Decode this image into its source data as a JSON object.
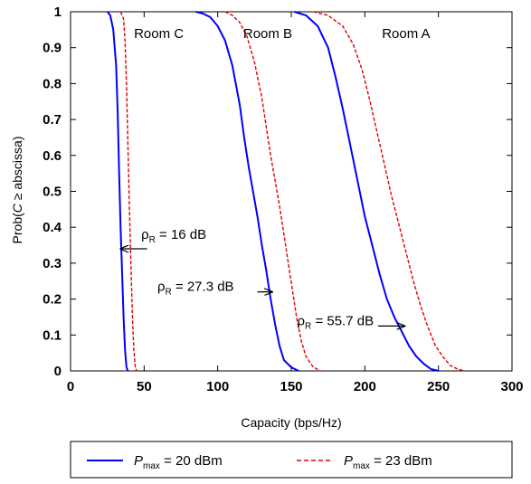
{
  "chart_data": {
    "type": "line",
    "xlabel": "Capacity (bps/Hz)",
    "ylabel_parts": {
      "prefix": "Prob(",
      "var": "C",
      "rest": " ≥ abscissa)"
    },
    "xlim": [
      0,
      300
    ],
    "ylim": [
      0,
      1
    ],
    "xticks": [
      0,
      50,
      100,
      150,
      200,
      250,
      300
    ],
    "yticks": [
      0,
      0.1,
      0.2,
      0.3,
      0.4,
      0.5,
      0.6,
      0.7,
      0.8,
      0.9,
      1
    ],
    "ytick_labels": [
      "0",
      "0.1",
      "0.2",
      "0.3",
      "0.4",
      "0.5",
      "0.6",
      "0.7",
      "0.8",
      "0.9",
      "1"
    ],
    "grid": false,
    "legend_position": "bottom",
    "series": [
      {
        "group": "Room C",
        "pmax": "20",
        "color": "#0000ff",
        "dash": "solid",
        "points": [
          [
            25,
            1
          ],
          [
            27,
            0.99
          ],
          [
            29,
            0.95
          ],
          [
            31,
            0.85
          ],
          [
            32,
            0.72
          ],
          [
            33,
            0.55
          ],
          [
            34,
            0.4
          ],
          [
            35,
            0.28
          ],
          [
            36,
            0.15
          ],
          [
            37,
            0.06
          ],
          [
            38,
            0.01
          ],
          [
            39,
            0
          ]
        ]
      },
      {
        "group": "Room C",
        "pmax": "23",
        "color": "#e00000",
        "dash": "dashed",
        "points": [
          [
            34,
            1
          ],
          [
            36,
            0.98
          ],
          [
            37,
            0.92
          ],
          [
            38,
            0.8
          ],
          [
            39,
            0.63
          ],
          [
            40,
            0.45
          ],
          [
            41,
            0.3
          ],
          [
            42,
            0.16
          ],
          [
            43,
            0.06
          ],
          [
            44,
            0.01
          ],
          [
            45,
            0
          ]
        ]
      },
      {
        "group": "Room B",
        "pmax": "20",
        "color": "#0000ff",
        "dash": "solid",
        "points": [
          [
            85,
            1
          ],
          [
            90,
            0.995
          ],
          [
            95,
            0.985
          ],
          [
            100,
            0.96
          ],
          [
            105,
            0.92
          ],
          [
            110,
            0.85
          ],
          [
            115,
            0.74
          ],
          [
            118,
            0.65
          ],
          [
            121,
            0.57
          ],
          [
            124,
            0.5
          ],
          [
            127,
            0.43
          ],
          [
            130,
            0.35
          ],
          [
            133,
            0.28
          ],
          [
            136,
            0.2
          ],
          [
            139,
            0.13
          ],
          [
            142,
            0.07
          ],
          [
            145,
            0.03
          ],
          [
            150,
            0.01
          ],
          [
            155,
            0
          ]
        ]
      },
      {
        "group": "Room B",
        "pmax": "23",
        "color": "#e00000",
        "dash": "dashed",
        "points": [
          [
            105,
            1
          ],
          [
            110,
            0.99
          ],
          [
            115,
            0.97
          ],
          [
            120,
            0.93
          ],
          [
            125,
            0.86
          ],
          [
            130,
            0.76
          ],
          [
            133,
            0.68
          ],
          [
            136,
            0.6
          ],
          [
            139,
            0.53
          ],
          [
            142,
            0.46
          ],
          [
            145,
            0.38
          ],
          [
            148,
            0.3
          ],
          [
            151,
            0.22
          ],
          [
            154,
            0.14
          ],
          [
            157,
            0.08
          ],
          [
            160,
            0.04
          ],
          [
            165,
            0.01
          ],
          [
            170,
            0
          ]
        ]
      },
      {
        "group": "Room A",
        "pmax": "20",
        "color": "#0000ff",
        "dash": "solid",
        "points": [
          [
            152,
            1
          ],
          [
            160,
            0.99
          ],
          [
            168,
            0.96
          ],
          [
            175,
            0.9
          ],
          [
            180,
            0.82
          ],
          [
            185,
            0.73
          ],
          [
            190,
            0.63
          ],
          [
            195,
            0.53
          ],
          [
            200,
            0.43
          ],
          [
            205,
            0.35
          ],
          [
            210,
            0.27
          ],
          [
            215,
            0.2
          ],
          [
            220,
            0.15
          ],
          [
            225,
            0.11
          ],
          [
            230,
            0.07
          ],
          [
            235,
            0.04
          ],
          [
            240,
            0.02
          ],
          [
            245,
            0.005
          ],
          [
            250,
            0
          ]
        ]
      },
      {
        "group": "Room A",
        "pmax": "23",
        "color": "#e00000",
        "dash": "dashed",
        "points": [
          [
            165,
            1
          ],
          [
            175,
            0.99
          ],
          [
            185,
            0.96
          ],
          [
            192,
            0.91
          ],
          [
            198,
            0.84
          ],
          [
            203,
            0.76
          ],
          [
            208,
            0.67
          ],
          [
            213,
            0.58
          ],
          [
            218,
            0.49
          ],
          [
            223,
            0.41
          ],
          [
            228,
            0.33
          ],
          [
            233,
            0.25
          ],
          [
            238,
            0.18
          ],
          [
            243,
            0.12
          ],
          [
            248,
            0.07
          ],
          [
            253,
            0.04
          ],
          [
            258,
            0.015
          ],
          [
            263,
            0.005
          ],
          [
            268,
            0
          ]
        ]
      }
    ],
    "room_labels": [
      {
        "text": "Room C",
        "x": 60,
        "y": 0.94
      },
      {
        "text": "Room B",
        "x": 134,
        "y": 0.94
      },
      {
        "text": "Room A",
        "x": 228,
        "y": 0.94
      }
    ],
    "annotations": [
      {
        "rho": "ρ",
        "sub": "R",
        "value": " = 16 dB",
        "text_x": 48,
        "text_y": 0.38,
        "arrow_from": [
          52,
          0.34
        ],
        "arrow_to": [
          34,
          0.34
        ]
      },
      {
        "rho": "ρ",
        "sub": "R",
        "value": " = 27.3 dB",
        "text_x": 59,
        "text_y": 0.235,
        "arrow_from": [
          127,
          0.22
        ],
        "arrow_to": [
          137,
          0.22
        ]
      },
      {
        "rho": "ρ",
        "sub": "R",
        "value": " = 55.7 dB",
        "text_x": 154,
        "text_y": 0.14,
        "arrow_from": [
          209,
          0.125
        ],
        "arrow_to": [
          227,
          0.125
        ]
      }
    ],
    "legend": [
      {
        "symbol": "P",
        "sub": "max",
        "value": " = 20 dBm",
        "color": "#0000ff",
        "dash": "solid"
      },
      {
        "symbol": "P",
        "sub": "max",
        "value": " = 23 dBm",
        "color": "#e00000",
        "dash": "dashed"
      }
    ]
  }
}
